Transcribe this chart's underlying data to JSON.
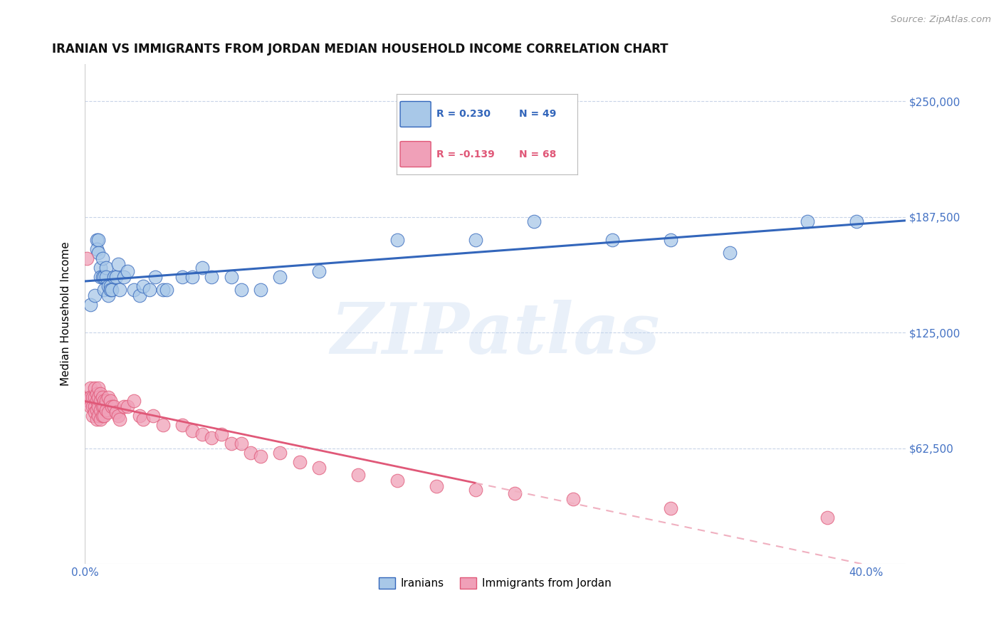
{
  "title": "IRANIAN VS IMMIGRANTS FROM JORDAN MEDIAN HOUSEHOLD INCOME CORRELATION CHART",
  "source": "Source: ZipAtlas.com",
  "ylabel": "Median Household Income",
  "ytick_labels": [
    "$62,500",
    "$125,000",
    "$187,500",
    "$250,000"
  ],
  "ytick_values": [
    62500,
    125000,
    187500,
    250000
  ],
  "y_min": 0,
  "y_max": 270000,
  "x_min": 0.0,
  "x_max": 0.42,
  "legend_iranian_R": "R = 0.230",
  "legend_iranian_N": "N = 49",
  "legend_jordan_R": "R = -0.139",
  "legend_jordan_N": "N = 68",
  "watermark": "ZIPatlas",
  "color_iranian": "#a8c8e8",
  "color_iranian_line": "#3366bb",
  "color_jordan": "#f0a0b8",
  "color_jordan_line": "#e05878",
  "color_jordan_line_dashed": "#f0b0c0",
  "color_axis_text": "#4472c4",
  "color_grid": "#c8d4e8",
  "iranian_x": [
    0.003,
    0.005,
    0.006,
    0.006,
    0.007,
    0.007,
    0.008,
    0.008,
    0.009,
    0.009,
    0.01,
    0.01,
    0.011,
    0.011,
    0.012,
    0.012,
    0.013,
    0.013,
    0.014,
    0.015,
    0.016,
    0.017,
    0.018,
    0.02,
    0.022,
    0.025,
    0.028,
    0.03,
    0.033,
    0.036,
    0.04,
    0.042,
    0.05,
    0.055,
    0.06,
    0.065,
    0.075,
    0.08,
    0.09,
    0.1,
    0.12,
    0.16,
    0.2,
    0.23,
    0.27,
    0.3,
    0.33,
    0.37,
    0.395
  ],
  "iranian_y": [
    140000,
    145000,
    175000,
    170000,
    175000,
    168000,
    160000,
    155000,
    165000,
    155000,
    155000,
    148000,
    160000,
    155000,
    150000,
    145000,
    150000,
    148000,
    148000,
    155000,
    155000,
    162000,
    148000,
    155000,
    158000,
    148000,
    145000,
    150000,
    148000,
    155000,
    148000,
    148000,
    155000,
    155000,
    160000,
    155000,
    155000,
    148000,
    148000,
    155000,
    158000,
    175000,
    175000,
    185000,
    175000,
    175000,
    168000,
    185000,
    185000
  ],
  "jordan_x": [
    0.001,
    0.002,
    0.002,
    0.003,
    0.003,
    0.003,
    0.004,
    0.004,
    0.004,
    0.005,
    0.005,
    0.005,
    0.005,
    0.006,
    0.006,
    0.006,
    0.006,
    0.007,
    0.007,
    0.007,
    0.007,
    0.008,
    0.008,
    0.008,
    0.008,
    0.009,
    0.009,
    0.009,
    0.01,
    0.01,
    0.01,
    0.011,
    0.011,
    0.012,
    0.012,
    0.013,
    0.014,
    0.015,
    0.016,
    0.017,
    0.018,
    0.02,
    0.022,
    0.025,
    0.028,
    0.03,
    0.035,
    0.04,
    0.05,
    0.055,
    0.06,
    0.065,
    0.07,
    0.075,
    0.08,
    0.085,
    0.09,
    0.1,
    0.11,
    0.12,
    0.14,
    0.16,
    0.18,
    0.2,
    0.22,
    0.25,
    0.3,
    0.38
  ],
  "jordan_y": [
    165000,
    90000,
    88000,
    95000,
    90000,
    85000,
    90000,
    85000,
    80000,
    95000,
    90000,
    85000,
    82000,
    92000,
    88000,
    83000,
    78000,
    95000,
    90000,
    85000,
    80000,
    92000,
    88000,
    83000,
    78000,
    90000,
    85000,
    80000,
    88000,
    85000,
    80000,
    88000,
    83000,
    90000,
    82000,
    88000,
    85000,
    85000,
    82000,
    80000,
    78000,
    85000,
    85000,
    88000,
    80000,
    78000,
    80000,
    75000,
    75000,
    72000,
    70000,
    68000,
    70000,
    65000,
    65000,
    60000,
    58000,
    60000,
    55000,
    52000,
    48000,
    45000,
    42000,
    40000,
    38000,
    35000,
    30000,
    25000
  ]
}
